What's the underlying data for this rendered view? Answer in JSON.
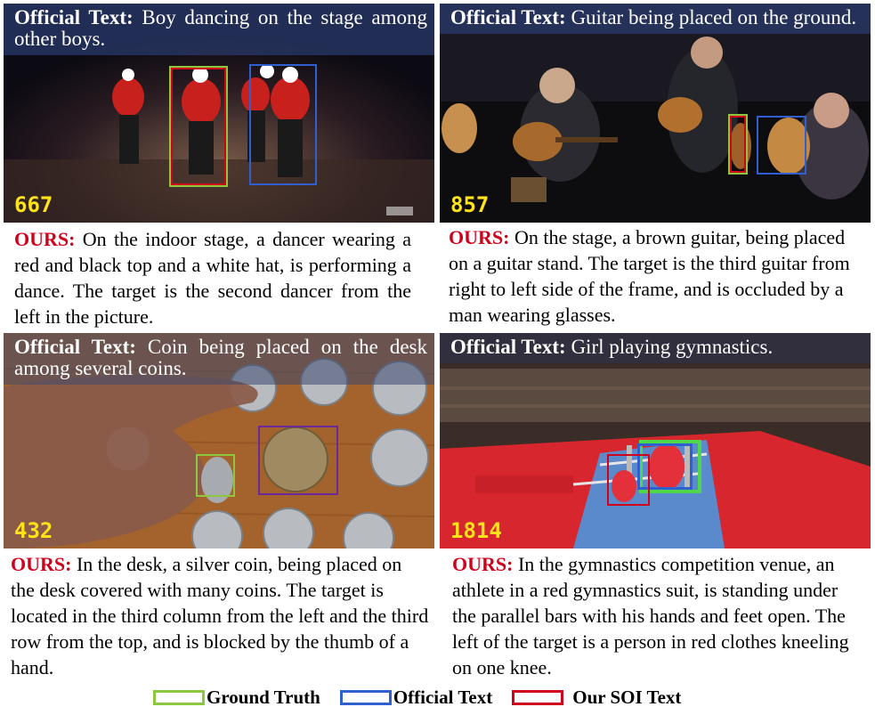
{
  "colors": {
    "ground_truth": "#8dc63f",
    "official": "#2f5fd0",
    "ours": "#d0021b",
    "frame_number": "#ffe21a"
  },
  "panels": [
    {
      "official_label": "Official Text:",
      "official_text": "Boy dancing on the stage among other boys.",
      "frame_number": "667",
      "ours_label": "OURS:",
      "ours_text": "On the indoor stage, a dancer wearing a red and black top and a white hat, is performing a dance. The target is the second dancer from the left in the picture."
    },
    {
      "official_label": "Official Text:",
      "official_text": "Guitar being placed on the ground.",
      "frame_number": "857",
      "ours_label": "OURS:",
      "ours_text": "On the stage, a brown guitar, being placed on a guitar stand. The target is the third guitar from right to left side of the frame, and is occluded by a man wearing glasses."
    },
    {
      "official_label": "Official Text:",
      "official_text": "Coin being placed on the desk among several coins.",
      "frame_number": "432",
      "ours_label": "OURS:",
      "ours_text": "In the desk, a silver coin, being placed on the desk covered with many coins. The target is located in the third column from the left and the third row from the top, and is blocked by the thumb of a hand."
    },
    {
      "official_label": "Official Text:",
      "official_text": "Girl playing gymnastics.",
      "frame_number": "1814",
      "ours_label": "OURS:",
      "ours_text": "In the gymnastics competition venue, an athlete in a red gymnastics suit, is standing under the parallel bars with his hands and feet open. The left of the target is a person in red clothes kneeling on one knee."
    }
  ],
  "legend": {
    "ground_truth": "Ground Truth",
    "official": "Official Text",
    "ours": "Our SOI Text"
  }
}
